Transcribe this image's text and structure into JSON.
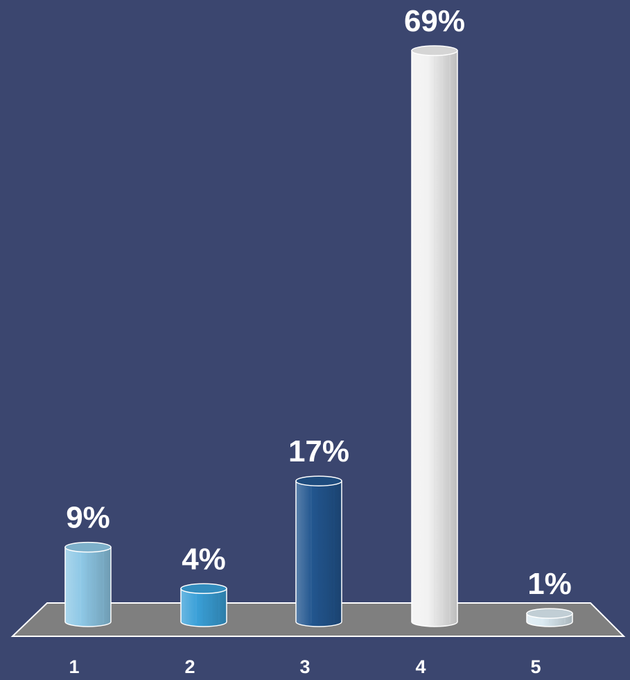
{
  "chart_data": {
    "type": "bar",
    "categories": [
      "1",
      "2",
      "3",
      "4",
      "5"
    ],
    "values": [
      9,
      4,
      17,
      69,
      1
    ],
    "value_labels": [
      "9%",
      "4%",
      "17%",
      "69%",
      "1%"
    ],
    "title": "",
    "xlabel": "",
    "ylabel": "",
    "ylim": [
      0,
      69
    ],
    "grid": false,
    "legend": "none",
    "bar_style": "3d-cylinder",
    "colors": [
      "#8ec8e6",
      "#3aa0d8",
      "#22568f",
      "#f2f2f2",
      "#dbeaf2"
    ],
    "floor_color": "#7f7f7f",
    "background": "#3b466f"
  }
}
